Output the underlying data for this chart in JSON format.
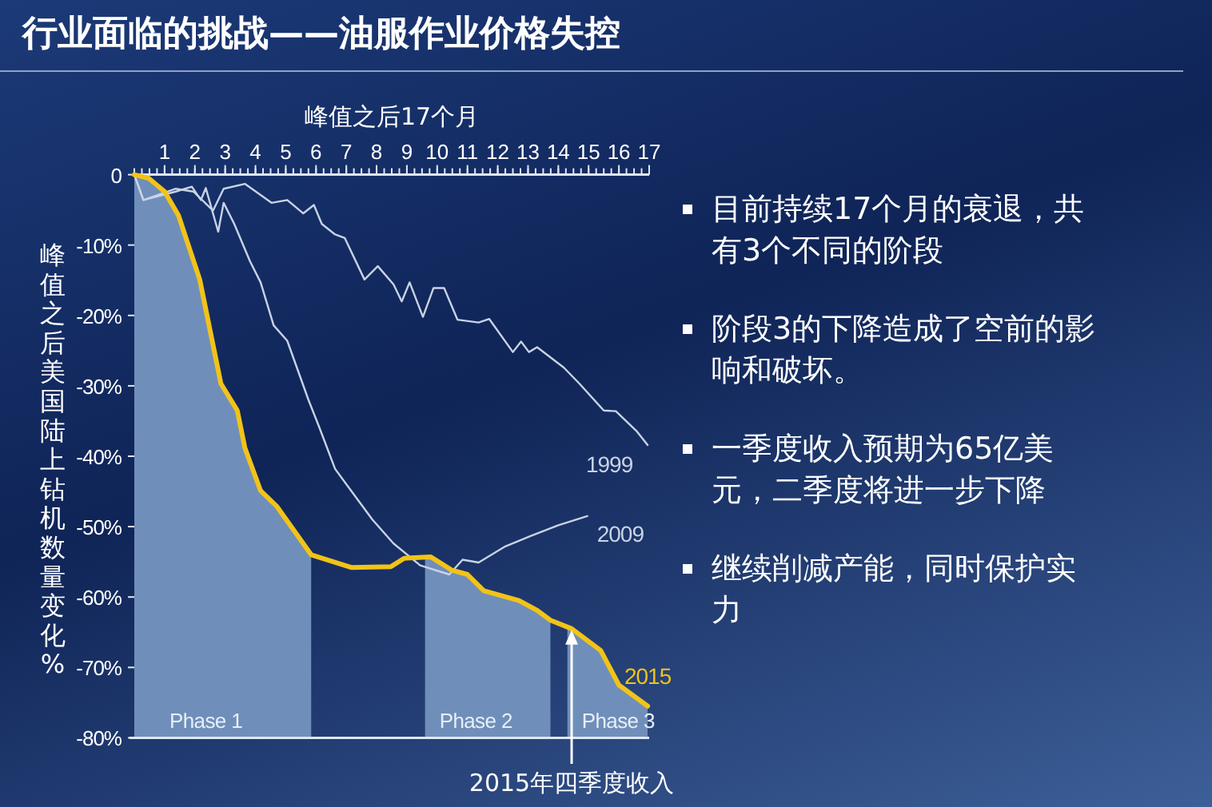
{
  "chart_data": {
    "type": "line",
    "title": "行业面临的挑战——油服作业价格失控",
    "xlabel": "峰值之后17个月",
    "ylabel": "峰值之后美国陆上钻机数量变化%",
    "xlim": [
      0,
      17
    ],
    "xticks": [
      1,
      2,
      3,
      4,
      5,
      6,
      7,
      8,
      9,
      10,
      11,
      12,
      13,
      14,
      15,
      16,
      17
    ],
    "ylim": [
      -80,
      0
    ],
    "yticks": [
      0,
      {
        "value": -10,
        "label": "-10%"
      },
      {
        "value": -20,
        "label": "-20%"
      },
      {
        "value": -30,
        "label": "-30%"
      },
      {
        "value": -40,
        "label": "-40%"
      },
      {
        "value": -50,
        "label": "-50%"
      },
      {
        "value": -60,
        "label": "-60%"
      },
      {
        "value": -70,
        "label": "-70%"
      },
      {
        "value": -80,
        "label": "-80%"
      }
    ],
    "grid": false,
    "legend": false,
    "marker": "none",
    "line_style": "solid",
    "series": [
      {
        "name": "1999",
        "color": "#c9d3e6",
        "x": [
          0,
          0.3,
          1.37,
          1.95,
          2.6,
          2.95,
          3.65,
          4.53,
          5.05,
          5.58,
          5.93,
          6.19,
          6.63,
          6.95,
          7.6,
          8.04,
          8.56,
          8.83,
          9.09,
          9.53,
          9.88,
          10.23,
          10.67,
          11.37,
          11.72,
          12.5,
          12.77,
          13.03,
          13.3,
          14.18,
          14.7,
          15.5,
          15.9,
          16.6,
          16.95
        ],
        "values": [
          0,
          -3.6,
          -2,
          -2.4,
          -5.1,
          -2,
          -1.3,
          -4,
          -3.6,
          -5.5,
          -4.3,
          -7,
          -8.5,
          -9,
          -14.9,
          -13,
          -15.6,
          -18,
          -15.3,
          -20.2,
          -16.1,
          -16.1,
          -20.6,
          -21,
          -20.5,
          -25.2,
          -23.7,
          -25.2,
          -24.5,
          -27.4,
          -29.7,
          -33.5,
          -33.6,
          -36.5,
          -38.4
        ]
      },
      {
        "name": "2009",
        "color": "#c9d3e6",
        "x": [
          0,
          0.3,
          1.37,
          1.9,
          2.2,
          2.36,
          2.77,
          2.95,
          3.3,
          3.82,
          4.17,
          4.6,
          5.05,
          5.75,
          6.1,
          6.63,
          7.16,
          7.86,
          8.56,
          9.44,
          10.4,
          10.84,
          11.37,
          12.25,
          13.1,
          14.0,
          14.96
        ],
        "values": [
          0,
          -3.6,
          -2.4,
          -1.7,
          -3.6,
          -1.9,
          -8.1,
          -4,
          -7,
          -12.3,
          -15.3,
          -21.4,
          -23.6,
          -32,
          -35.8,
          -41.8,
          -44.9,
          -49,
          -52.4,
          -55.5,
          -56.8,
          -54.7,
          -55.1,
          -52.8,
          -51.3,
          -49.8,
          -48.5
        ]
      },
      {
        "name": "2015",
        "color": "#f2c318",
        "x": [
          0,
          0.47,
          1.0,
          1.46,
          2.16,
          2.86,
          3.4,
          3.65,
          4.17,
          4.7,
          5.84,
          7.16,
          8.47,
          8.91,
          9.79,
          10.49,
          11.0,
          11.54,
          12.7,
          13.3,
          13.74,
          14.44,
          15.4,
          16.0,
          16.95
        ],
        "values": [
          0,
          -0.5,
          -2.4,
          -5.8,
          -14.9,
          -29.7,
          -33.5,
          -38.8,
          -44.9,
          -47.1,
          -54,
          -55.8,
          -55.7,
          -54.5,
          -54.3,
          -56.2,
          -56.8,
          -59.1,
          -60.5,
          -61.9,
          -63.3,
          -64.5,
          -67.6,
          -72.5,
          -75.5
        ]
      }
    ],
    "bands": [
      {
        "axis": "x",
        "from": 0,
        "to": 5.84,
        "label": "Phase 1",
        "color": "#6f8fba"
      },
      {
        "axis": "x",
        "from": 9.6,
        "to": 13.74,
        "label": "Phase 2",
        "color": "#6f8fba"
      },
      {
        "axis": "x",
        "from": 14.3,
        "to": 16.95,
        "label": "Phase 3",
        "color": "#6f8fba"
      }
    ],
    "annotations": [
      {
        "text": "2015年四季度收入",
        "x": 14.44,
        "y": -64.5
      },
      "目前持续17个月的衰退，共有3个不同的阶段",
      "阶段3的下降造成了空前的影响和破坏。",
      "一季度收入预期为65亿美元，二季度将进一步下降",
      "继续削减产能，同时保护实力"
    ]
  }
}
